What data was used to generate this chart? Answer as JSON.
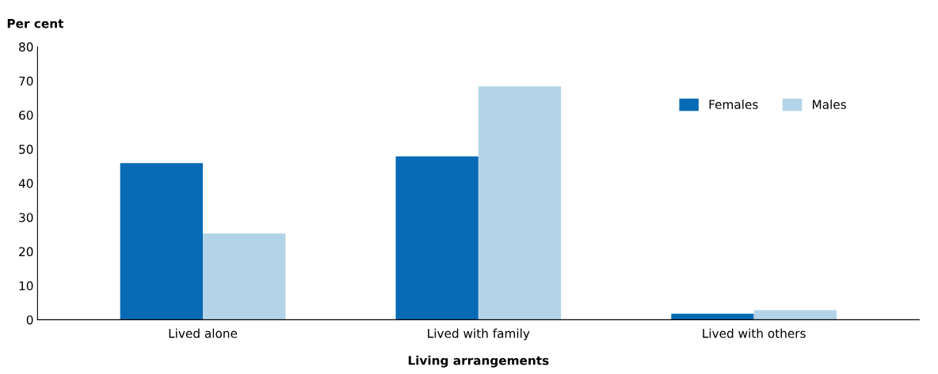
{
  "chart_data": {
    "type": "bar",
    "xlabel": "Living arrangements",
    "ylabel": "Per cent",
    "categories": [
      "Lived alone",
      "Lived with family",
      "Lived with others"
    ],
    "series": [
      {
        "name": "Females",
        "color": "#066bb4",
        "values": [
          45.9,
          47.9,
          1.8
        ]
      },
      {
        "name": "Males",
        "color": "#b3d4e8",
        "values": [
          25.3,
          68.4,
          2.8
        ]
      }
    ],
    "ylim": [
      0,
      80
    ],
    "yticks": [
      0,
      10,
      20,
      30,
      40,
      50,
      60,
      70,
      80
    ],
    "grid": false,
    "legend": "top right"
  }
}
